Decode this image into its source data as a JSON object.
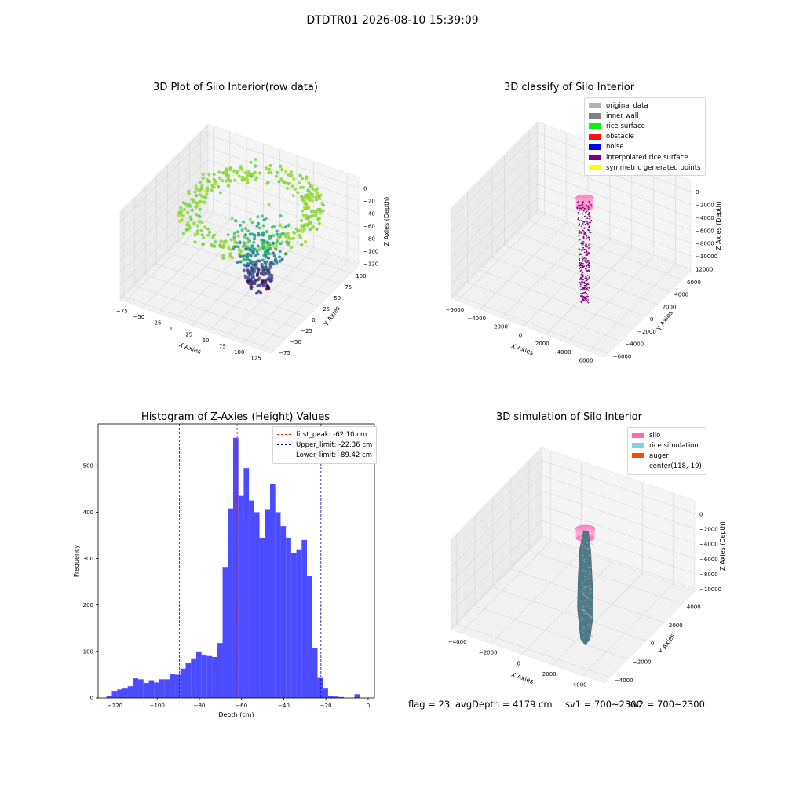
{
  "suptitle": "DTDTR01 2026-08-10 15:39:09",
  "status": {
    "flag": "flag = 23",
    "avg_depth": "avgDepth = 4179 cm",
    "sv1": "sv1 = 700~2300",
    "sv2": "sv2 = 700~2300"
  },
  "chart_data": [
    {
      "type": "scatter",
      "title": "3D Plot of Silo Interior(row data)",
      "xlabel": "X Axies",
      "ylabel": "Y Axies",
      "zlabel": "Z Axies (Depth)",
      "x_ticks": [
        "−75",
        "−50",
        "−25",
        "0",
        "25",
        "50",
        "75",
        "100",
        "125"
      ],
      "y_ticks": [
        "−75",
        "−50",
        "−25",
        "0",
        "25",
        "50",
        "75",
        "100"
      ],
      "z_ticks": [
        "0",
        "−20",
        "−40",
        "−60",
        "−80",
        "−100",
        "−120"
      ],
      "colormap": "viridis"
    },
    {
      "type": "scatter",
      "title": "3D classify of Silo Interior",
      "xlabel": "X Axies",
      "ylabel": "Y Axies",
      "zlabel": "Z Axies (Depth)",
      "x_ticks": [
        "−6000",
        "−4000",
        "−2000",
        "0",
        "2000",
        "4000",
        "6000"
      ],
      "y_ticks": [
        "−6000",
        "−4000",
        "−2000",
        "0",
        "2000",
        "4000",
        "6000"
      ],
      "z_ticks": [
        "0",
        "−2000",
        "−4000",
        "−6000",
        "−8000",
        "−10000",
        "12000"
      ],
      "legend": [
        {
          "name": "original data",
          "color": "#b3b3b3"
        },
        {
          "name": "inner wall",
          "color": "#808080"
        },
        {
          "name": "rice surface",
          "color": "#11ee11"
        },
        {
          "name": "obstacle",
          "color": "#ff1111"
        },
        {
          "name": "noise",
          "color": "#0000ee"
        },
        {
          "name": "interpolated rice surface",
          "color": "#800080"
        },
        {
          "name": "symmetric generated points",
          "color": "#ffff00"
        }
      ]
    },
    {
      "type": "bar",
      "title": "Histogram of Z-Axies (Height) Values",
      "xlabel": "Depth (cm)",
      "ylabel": "Frequency",
      "xlim": [
        -128,
        3
      ],
      "ylim": [
        0,
        590
      ],
      "x_ticks": [
        -120,
        -100,
        -80,
        -60,
        -40,
        -20,
        0
      ],
      "y_ticks": [
        0,
        100,
        200,
        300,
        400,
        500
      ],
      "bin_start": -124,
      "bin_width": 2.5,
      "values": [
        5,
        15,
        18,
        20,
        25,
        42,
        40,
        32,
        38,
        33,
        40,
        40,
        52,
        50,
        63,
        75,
        85,
        100,
        92,
        90,
        88,
        118,
        282,
        408,
        560,
        435,
        495,
        425,
        400,
        345,
        405,
        460,
        400,
        370,
        345,
        312,
        320,
        340,
        262,
        108,
        43,
        20,
        5,
        3,
        2,
        0,
        0,
        8
      ],
      "vlines": [
        {
          "label": "first_peak: -62.10 cm",
          "x": -62.1,
          "color": "#ff0000"
        },
        {
          "label": "Upper_limit: -22.36 cm",
          "x": -22.36,
          "color": "#00008b"
        },
        {
          "label": "Lower_limit: -89.42 cm",
          "x": -89.42,
          "color": "#0000cd"
        }
      ],
      "bar_color": "#4b4bff"
    },
    {
      "type": "scatter",
      "title": "3D simulation of Silo Interior",
      "xlabel": "X Axies",
      "ylabel": "Y Axies",
      "zlabel": "Z Axies (Depth)",
      "x_ticks": [
        "−4000",
        "−2000",
        "0",
        "2000",
        "4000"
      ],
      "y_ticks": [
        "−4000",
        "−2000",
        "0",
        "2000",
        "4000"
      ],
      "z_ticks": [
        "0",
        "−2000",
        "−4000",
        "−6000",
        "−8000",
        "−10000"
      ],
      "legend": [
        {
          "name": "silo",
          "color": "#ff69b4"
        },
        {
          "name": "rice simulation",
          "color": "#87ceeb"
        },
        {
          "name": "auger",
          "color": "#ff4500"
        },
        {
          "name": "center(118,-19)",
          "color": ""
        }
      ]
    }
  ]
}
